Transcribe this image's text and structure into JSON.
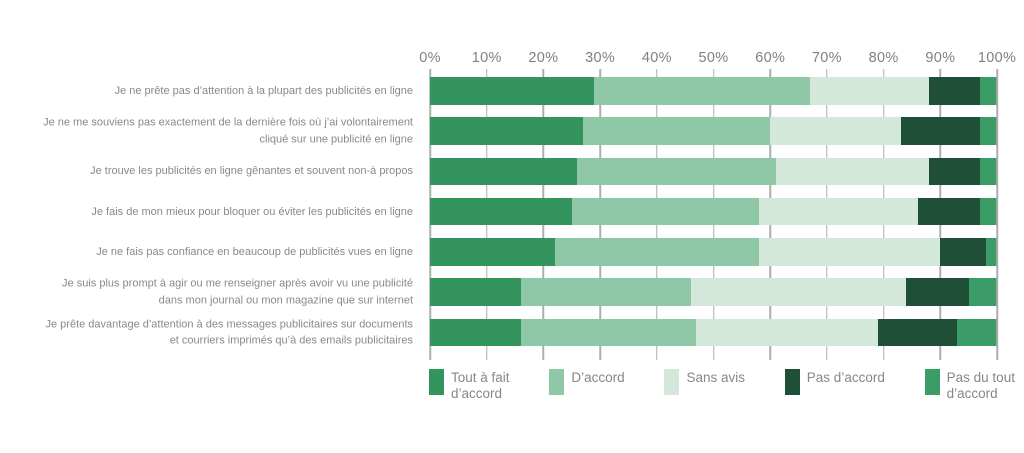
{
  "colors": {
    "background": "#FFFFFF",
    "grid": "#AEAEAE",
    "axis_text": "#7E8083",
    "label_text": "#87898C"
  },
  "chart_data": {
    "type": "bar",
    "orientation": "horizontal-stacked",
    "title": "",
    "xlabel": "",
    "ylabel": "",
    "x_axis": {
      "min": 0,
      "max": 100,
      "unit": "%",
      "ticks": [
        "0%",
        "10%",
        "20%",
        "30%",
        "40%",
        "50%",
        "60%",
        "70%",
        "80%",
        "90%",
        "100%"
      ],
      "grid": true
    },
    "legend_position": "bottom",
    "categories": [
      "Je ne prête pas d’attention à la plupart des publicités en ligne",
      "Je ne me souviens pas exactement de la dernière fois où j’ai volontairement\ncliqué sur une publicité en ligne",
      "Je trouve les publicités en ligne gênantes et souvent non-à propos",
      "Je fais de mon mieux pour bloquer ou éviter les publicités en ligne",
      "Je ne fais pas confiance en beaucoup de publicités vues en ligne",
      "Je suis plus prompt à agir ou me renseigner après avoir vu une publicité\ndans mon journal ou mon magazine que sur internet",
      "Je prête davantage d’attention à des messages publicitaires sur documents\net courriers imprimés qu’à des emails publicitaires"
    ],
    "series": [
      {
        "name": "Tout à fait\nd’accord",
        "color": "#33945E",
        "values": [
          29,
          27,
          26,
          25,
          22,
          16,
          16
        ]
      },
      {
        "name": "D’accord",
        "color": "#8FC8A6",
        "values": [
          38,
          33,
          35,
          33,
          36,
          30,
          31
        ]
      },
      {
        "name": "Sans avis",
        "color": "#D4E7DB",
        "values": [
          21,
          23,
          27,
          28,
          32,
          38,
          32
        ]
      },
      {
        "name": "Pas d’accord",
        "color": "#1F4F37",
        "values": [
          9,
          14,
          9,
          11,
          8,
          11,
          14
        ]
      },
      {
        "name": "Pas du tout\nd’accord",
        "color": "#3B9C68",
        "values": [
          3,
          3,
          3,
          3,
          2,
          5,
          7
        ]
      }
    ]
  }
}
